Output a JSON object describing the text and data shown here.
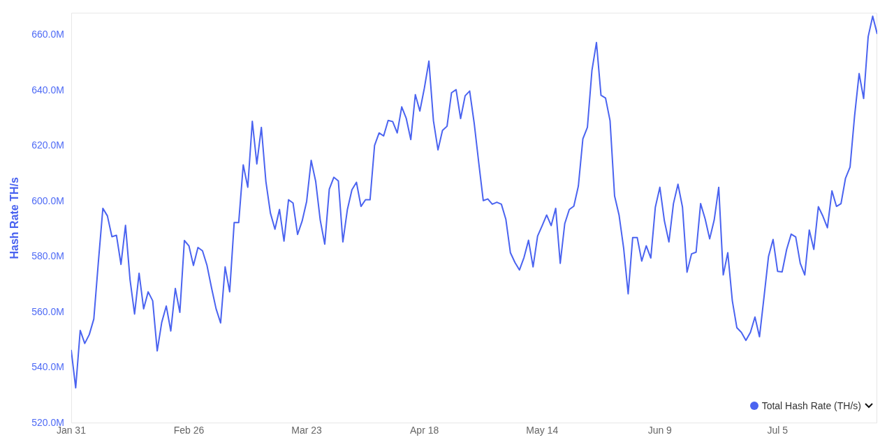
{
  "chart_data": {
    "type": "line",
    "ylabel": "Hash Rate TH/s",
    "legend": "bottom right",
    "marker": "none",
    "line_style": "solid",
    "grid": false,
    "x": [
      "--01-31",
      "--02-01",
      "--02-02",
      "--02-03",
      "--02-04",
      "--02-05",
      "--02-06",
      "--02-07",
      "--02-08",
      "--02-09",
      "--02-10",
      "--02-11",
      "--02-12",
      "--02-13",
      "--02-14",
      "--02-15",
      "--02-16",
      "--02-17",
      "--02-18",
      "--02-19",
      "--02-20",
      "--02-21",
      "--02-22",
      "--02-23",
      "--02-24",
      "--02-25",
      "--02-26",
      "--02-27",
      "--02-28",
      "--02-29",
      "--03-01",
      "--03-02",
      "--03-03",
      "--03-04",
      "--03-05",
      "--03-06",
      "--03-07",
      "--03-08",
      "--03-09",
      "--03-10",
      "--03-11",
      "--03-12",
      "--03-13",
      "--03-14",
      "--03-15",
      "--03-16",
      "--03-17",
      "--03-18",
      "--03-19",
      "--03-20",
      "--03-21",
      "--03-22",
      "--03-23",
      "--03-24",
      "--03-25",
      "--03-26",
      "--03-27",
      "--03-28",
      "--03-29",
      "--03-30",
      "--03-31",
      "--04-01",
      "--04-02",
      "--04-03",
      "--04-04",
      "--04-05",
      "--04-06",
      "--04-07",
      "--04-08",
      "--04-09",
      "--04-10",
      "--04-11",
      "--04-12",
      "--04-13",
      "--04-14",
      "--04-15",
      "--04-16",
      "--04-17",
      "--04-18",
      "--04-19",
      "--04-20",
      "--04-21",
      "--04-22",
      "--04-23",
      "--04-24",
      "--04-25",
      "--04-26",
      "--04-27",
      "--04-28",
      "--04-29",
      "--04-30",
      "--05-01",
      "--05-02",
      "--05-03",
      "--05-04",
      "--05-05",
      "--05-06",
      "--05-07",
      "--05-08",
      "--05-09",
      "--05-10",
      "--05-11",
      "--05-12",
      "--05-13",
      "--05-14",
      "--05-15",
      "--05-16",
      "--05-17",
      "--05-18",
      "--05-19",
      "--05-20",
      "--05-21",
      "--05-22",
      "--05-23",
      "--05-24",
      "--05-25",
      "--05-26",
      "--05-27",
      "--05-28",
      "--05-29",
      "--05-30",
      "--05-31",
      "--06-01",
      "--06-02",
      "--06-03",
      "--06-04",
      "--06-05",
      "--06-06",
      "--06-07",
      "--06-08",
      "--06-09",
      "--06-10",
      "--06-11",
      "--06-12",
      "--06-13",
      "--06-14",
      "--06-15",
      "--06-16",
      "--06-17",
      "--06-18",
      "--06-19",
      "--06-20",
      "--06-21",
      "--06-22",
      "--06-23",
      "--06-24",
      "--06-25",
      "--06-26",
      "--06-27",
      "--06-28",
      "--06-29",
      "--06-30",
      "--07-01",
      "--07-02",
      "--07-03",
      "--07-04",
      "--07-05",
      "--07-06",
      "--07-07",
      "--07-08",
      "--07-09",
      "--07-10",
      "--07-11",
      "--07-12",
      "--07-13",
      "--07-14",
      "--07-15",
      "--07-16",
      "--07-17",
      "--07-18",
      "--07-19",
      "--07-20",
      "--07-21",
      "--07-22",
      "--07-23",
      "--07-24",
      "--07-25",
      "--07-26",
      "--07-27"
    ],
    "series": [
      {
        "name": "Total Hash Rate (TH/s)",
        "color": "#4a63f0",
        "values": [
          546.5,
          532.8,
          553.5,
          548.8,
          552.0,
          557.6,
          578,
          597.5,
          594.8,
          587.3,
          587.8,
          577.3,
          591.4,
          571.8,
          559.4,
          574.1,
          561.3,
          567.4,
          564.2,
          546.1,
          556.4,
          562.3,
          553.3,
          568.6,
          560.0,
          585.9,
          584.0,
          576.9,
          583.4,
          582.2,
          576.9,
          568.8,
          561.3,
          556.2,
          576.4,
          567.4,
          592.4,
          592.4,
          613.2,
          605.1,
          628.9,
          613.5,
          626.7,
          607.2,
          595.8,
          590.0,
          597.1,
          585.7,
          600.6,
          599.4,
          588.1,
          592.9,
          600.0,
          614.8,
          607.2,
          593.3,
          584.6,
          604.4,
          608.7,
          607.4,
          585.4,
          597.1,
          604.2,
          606.9,
          598.2,
          600.6,
          600.6,
          620.2,
          624.7,
          623.6,
          629.2,
          628.8,
          624.7,
          634.1,
          629.9,
          622.3,
          638.5,
          632.6,
          640.9,
          650.6,
          629.1,
          618.6,
          625.6,
          627.1,
          639.2,
          640.3,
          629.9,
          638.1,
          639.8,
          628.2,
          614,
          600.3,
          600.9,
          599.0,
          599.7,
          599.0,
          593.5,
          581.5,
          578,
          575.3,
          579.8,
          586.0,
          576.4,
          587.5,
          591.2,
          595.1,
          591.3,
          597.5,
          577.7,
          592.0,
          597.1,
          598.3,
          605.5,
          622.6,
          626.7,
          647.2,
          657.3,
          638.3,
          637.3,
          629.1,
          602.0,
          595.0,
          583.2,
          566.7,
          587.0,
          587.0,
          578.5,
          584.0,
          579.6,
          597.9,
          605.1,
          593.0,
          585.4,
          599.2,
          606.2,
          597.9,
          574.5,
          581.1,
          581.7,
          599.2,
          593.7,
          586.5,
          593.3,
          605.1,
          573.5,
          581.5,
          564.2,
          554.5,
          552.8,
          549.9,
          552.8,
          558.3,
          551.2,
          565.5,
          580.2,
          586.3,
          574.8,
          574.6,
          582.7,
          588.2,
          587.2,
          577.7,
          573.5,
          589.7,
          582.7,
          598.1,
          594.7,
          590.5,
          603.8,
          598.2,
          599.2,
          608.4,
          612.4,
          630.8,
          646.1,
          637.1,
          659.4,
          666.8,
          660.4
        ]
      }
    ],
    "xlim": [
      "--01-31",
      "--07-27"
    ],
    "xticks": [
      {
        "value": "--01-31",
        "label": "Jan 31"
      },
      {
        "value": "--02-26",
        "label": "Feb 26"
      },
      {
        "value": "--03-23",
        "label": "Mar 23"
      },
      {
        "value": "--04-18",
        "label": "Apr 18"
      },
      {
        "value": "--05-14",
        "label": "May 14"
      },
      {
        "value": "--06-09",
        "label": "Jun 9"
      },
      {
        "value": "--07-05",
        "label": "Jul 5"
      }
    ],
    "ylim": [
      520,
      668
    ],
    "yticks": [
      {
        "value": 520,
        "label": "520.0M"
      },
      {
        "value": 540,
        "label": "540.0M"
      },
      {
        "value": 560,
        "label": "560.0M"
      },
      {
        "value": 580,
        "label": "580.0M"
      },
      {
        "value": 600,
        "label": "600.0M"
      },
      {
        "value": 620,
        "label": "620.0M"
      },
      {
        "value": 640,
        "label": "640.0M"
      },
      {
        "value": 660,
        "label": "660.0M"
      }
    ]
  }
}
